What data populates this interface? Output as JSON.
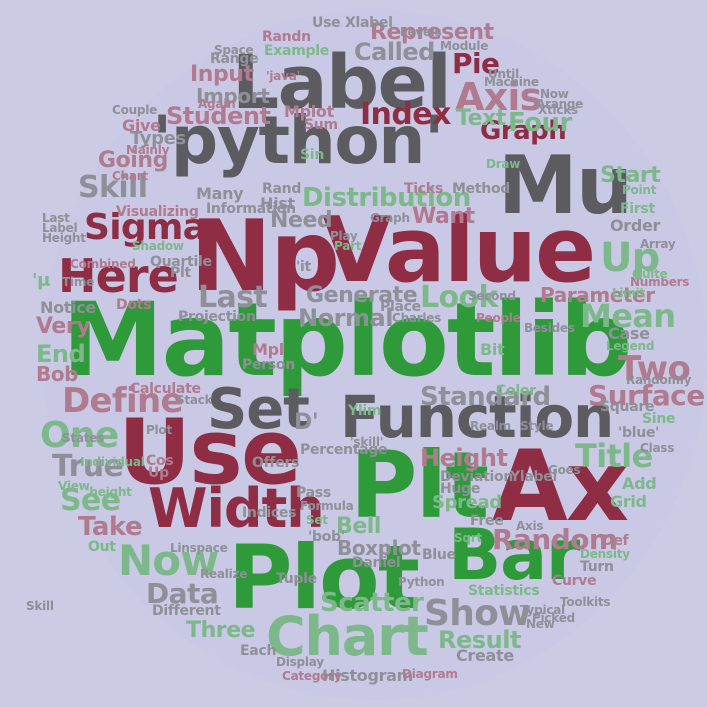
{
  "palette": {
    "background": "#cbcbe6",
    "green": "#2e9a3a",
    "maroon": "#8f2d45",
    "gray": "#5c5c60",
    "mauve": "#b07a8f",
    "sage": "#7cb889",
    "light_gray": "#8f8f98"
  },
  "words": {
    "matplotlib": "Matplotlib",
    "np": "Np",
    "value": "Value",
    "python": "'python'",
    "label": "Label",
    "mu": "Mu",
    "use": "Use",
    "plt": "Plt",
    "ax": "Ax",
    "plot": "Plot",
    "function": "Function",
    "set": "Set",
    "bar": "Bar",
    "chart": "Chart",
    "width": "Width",
    "here": "Here",
    "sigma": "Sigma",
    "axis": "Axis",
    "pie": "Pie",
    "index": "Index",
    "student": "Student",
    "distribution": "Distribution",
    "skill": "Skill",
    "graph": "Graph",
    "four": "Four",
    "up": "Up",
    "look": "Look",
    "last": "Last",
    "define": "Define",
    "title": "Title",
    "now": "Now",
    "random": "Random",
    "show": "Show",
    "data": "Data",
    "scatter": "Scatter",
    "result": "Result",
    "three": "Three",
    "one": "One",
    "true": "True",
    "see": "See",
    "take": "Take",
    "two": "Two",
    "mean": "Mean",
    "surface": "Surface",
    "height": "Height",
    "standard": "Standard",
    "normal": "Normal",
    "generate": "Generate",
    "parameter": "Parameter",
    "boxplot": "Boxplot",
    "bell": "Bell",
    "histogram": "Histogram",
    "create": "Create",
    "called": "Called",
    "represent": "Represent",
    "input": "Input",
    "import": "Import",
    "need": "Need",
    "want": "Want",
    "start": "Start",
    "text": "Text",
    "end": "End",
    "bob": "Bob",
    "very": "Very",
    "notice": "Notice",
    "going": "Going",
    "give": "Give",
    "types": "Types",
    "example": "Example",
    "use_xlabel": "Use Xlabel",
    "randn": "Randn",
    "range": "Range",
    "mplot": "Mplot",
    "sum": "Sum",
    "sin": "Sin",
    "many": "Many",
    "information": "Information",
    "rand": "Rand",
    "hist": "Hist",
    "visualizing": "Visualizing",
    "quartile": "Quartile",
    "combined": "Combined",
    "projection": "Projection",
    "person": "Person",
    "calculate": "Calculate",
    "mpl": "Mpl",
    "ylim": "Ylim",
    "d": "D'",
    "percentage": "Percentage",
    "ylabel": "Ylabel",
    "spread": "Spread",
    "color": "Color",
    "bit": "Bit",
    "case": "Case",
    "legend": "Legend",
    "order": "Order",
    "first": "First",
    "square": "Square",
    "sine": "Sine",
    "grid": "Grid",
    "add": "Add",
    "class": "Class",
    "turn": "Turn",
    "curve": "Curve",
    "density": "Density",
    "linspace": "Linspace",
    "different": "Different",
    "each": "Each",
    "tuple": "Tuple",
    "indices": "Indices",
    "daniel": "Daniel",
    "blue": "Blue",
    "statistics": "Statistics",
    "out": "Out",
    "huge": "Huge",
    "deviation": "Deviation",
    "charles": "Charles",
    "levels": "Levels",
    "module": "Module",
    "xticks": "Xticks",
    "it": "'it",
    "java": "'java'",
    "mu_small": "'μ",
    "chart_small": "Chart",
    "diagram": "Diagram",
    "place": "Place",
    "people": "People",
    "second": "Second",
    "limit": "Limit",
    "randomly": "Randomly",
    "toolkits": "Toolkits",
    "typical": "Typical",
    "picked": "Picked",
    "new": "New",
    "def": "Def",
    "free": "Free",
    "axis_small": "Axis",
    "goes": "Goes",
    "pass": "Pass",
    "offers": "Offers",
    "formula": "Formula",
    "set_small": "Set",
    "bob_quote": "'bob'",
    "height_quote": "'height",
    "view": "View",
    "states": "States",
    "plt_small": "Plt",
    "couple": "Couple",
    "again": "Again",
    "mainly": "Mainly",
    "until": "Until",
    "machine": "Machine",
    "now_small": "Now",
    "arange": "Arange",
    "draw": "Draw",
    "method": "Method",
    "ticks": "Ticks",
    "graph_small": "Graph",
    "play": "Play",
    "part": "Part",
    "generally": "Generally",
    "shadow": "Shadow",
    "dots": "Dots",
    "time": "Time",
    "height_small": "Height",
    "label_small": "Label",
    "last_small": "Last",
    "skill_small": "Skill",
    "space": "Space",
    "realm": "Realm",
    "style": "Style",
    "array": "Array",
    "point": "Point",
    "numbers": "Numbers",
    "quite": "Quite",
    "besides": "Besides",
    "realize": "Realize",
    "category": "Category",
    "display": "Display",
    "sqrt": "Sqrt",
    "blue_quote": "'blue'",
    "skill_quote": "'skill'",
    "python_small": "Python",
    "up_small": "Up",
    "cos": "Cos",
    "individual": "Individual",
    "stack": "Stack",
    "plot_small": "Plot",
    "nor": "Normal"
  }
}
